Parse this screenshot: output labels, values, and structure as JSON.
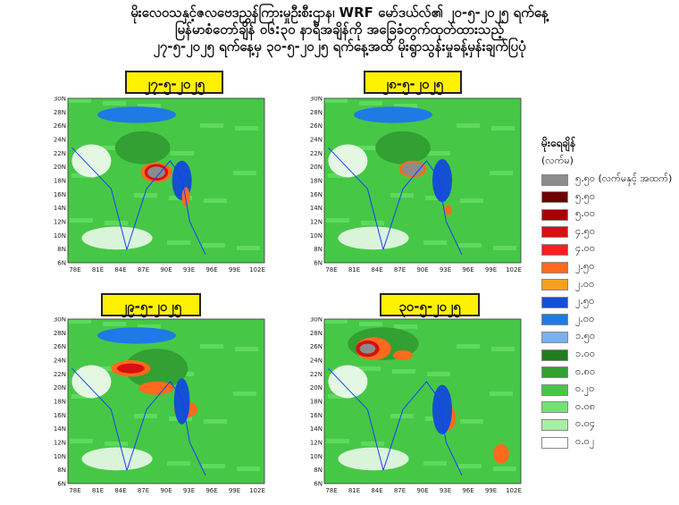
{
  "header": {
    "line1": "မိုးလေဝသနှင့်ဇလဗေဒညွှန်ကြားမှုဦးစီးဌာန၊ WRF မော်ဒယ်လ်၏ ၂၀-၅-၂၀၂၅ ရက်နေ့",
    "line2": "မြန်မာစံတော်ချိန် ၀၆:၃၀ နာရီအချိန်ကို အခြေခံတွက်ထုတ်ထားသည့်",
    "line3": "၂၇-၅-၂၀၂၅ ရက်နေ့မှ ၃၀-၅-၂၀၂၅ ရက်နေ့အထိ မိုးရွာသွန်းမှုခန့်မှန်းချက်ပြပုံ"
  },
  "panels": [
    {
      "date": "၂၇-၅-၂၀၂၅"
    },
    {
      "date": "၂၈-၅-၂၀၂၅"
    },
    {
      "date": "၂၉-၅-၂၀၂၅"
    },
    {
      "date": "၃၀-၅-၂၀၂၅"
    }
  ],
  "axes": {
    "lat_labels": [
      "30N",
      "28N",
      "26N",
      "24N",
      "22N",
      "20N",
      "18N",
      "16N",
      "14N",
      "12N",
      "10N",
      "8N",
      "6N"
    ],
    "lon_labels": [
      "78E",
      "81E",
      "84E",
      "87E",
      "90E",
      "93E",
      "96E",
      "99E",
      "102E"
    ]
  },
  "legend": {
    "title": "မိုးရေချိန်",
    "unit": "(လက်မ)",
    "items": [
      {
        "label": "၅.၅၀ (လက်မနှင့် အထက်)",
        "color": "#8c8c8c"
      },
      {
        "label": "၅.၅၀",
        "color": "#6e0000"
      },
      {
        "label": "၅.၀၀",
        "color": "#a80000"
      },
      {
        "label": "၄.၅၀",
        "color": "#d81010"
      },
      {
        "label": "၄.၀၀",
        "color": "#ff1e1e"
      },
      {
        "label": "၂.၅၀",
        "color": "#ff6a1e"
      },
      {
        "label": "၂.၀၀",
        "color": "#f5a020"
      },
      {
        "label": "၂.၅၀",
        "color": "#1450d2"
      },
      {
        "label": "၂.၀၀",
        "color": "#1f7ae6"
      },
      {
        "label": "၁.၅၀",
        "color": "#7ab0f0"
      },
      {
        "label": "၁.၀၀",
        "color": "#1e7d1e"
      },
      {
        "label": "၀.၈၀",
        "color": "#32a032"
      },
      {
        "label": "၀.၂၀",
        "color": "#46c846"
      },
      {
        "label": "၀.၀၈",
        "color": "#6ee66e"
      },
      {
        "label": "၀.၀၄",
        "color": "#a6f0a6"
      },
      {
        "label": "၀.၀၂",
        "color": "#ffffff"
      }
    ]
  }
}
